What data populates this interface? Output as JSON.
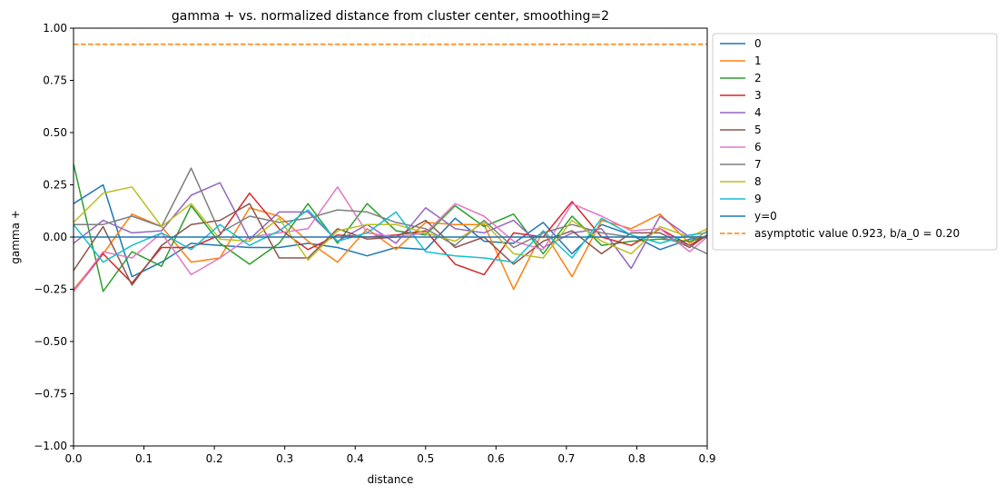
{
  "chart_data": {
    "type": "line",
    "title": "gamma + vs. normalized distance from cluster center, smoothing=2",
    "xlabel": "distance",
    "ylabel": "gamma +",
    "xlim": [
      0.0,
      0.9
    ],
    "ylim": [
      -1.0,
      1.0
    ],
    "xticks": [
      0.0,
      0.1,
      0.2,
      0.3,
      0.4,
      0.5,
      0.6,
      0.7,
      0.8,
      0.9
    ],
    "xtick_labels": [
      "0.0",
      "0.1",
      "0.2",
      "0.3",
      "0.4",
      "0.5",
      "0.6",
      "0.7",
      "0.8",
      "0.9"
    ],
    "yticks": [
      -1.0,
      -0.75,
      -0.5,
      -0.25,
      0.0,
      0.25,
      0.5,
      0.75,
      1.0
    ],
    "ytick_labels": [
      "−1.00",
      "−0.75",
      "−0.50",
      "−0.25",
      "0.00",
      "0.25",
      "0.50",
      "0.75",
      "1.00"
    ],
    "grid": false,
    "legend_position": "outside-right-top",
    "x": [
      0.0,
      0.042,
      0.083,
      0.125,
      0.167,
      0.208,
      0.25,
      0.292,
      0.333,
      0.375,
      0.417,
      0.458,
      0.5,
      0.542,
      0.583,
      0.625,
      0.667,
      0.708,
      0.75,
      0.792,
      0.833,
      0.875,
      0.9
    ],
    "series": [
      {
        "name": "0",
        "color": "#1f77b4",
        "dash": false,
        "values": [
          0.16,
          0.25,
          -0.19,
          -0.12,
          -0.03,
          -0.04,
          -0.05,
          -0.05,
          -0.03,
          -0.05,
          -0.09,
          -0.05,
          -0.06,
          0.09,
          -0.02,
          -0.03,
          0.07,
          -0.08,
          0.06,
          0.01,
          -0.06,
          -0.01,
          0.0
        ]
      },
      {
        "name": "1",
        "color": "#ff7f0e",
        "dash": false,
        "values": [
          -0.25,
          -0.08,
          0.11,
          0.05,
          -0.12,
          -0.1,
          0.14,
          0.1,
          -0.02,
          -0.12,
          0.04,
          -0.06,
          0.07,
          0.06,
          0.06,
          -0.25,
          0.03,
          -0.19,
          0.08,
          0.04,
          0.11,
          -0.03,
          0.03
        ]
      },
      {
        "name": "2",
        "color": "#2ca02c",
        "dash": false,
        "values": [
          0.35,
          -0.26,
          -0.07,
          -0.14,
          0.15,
          -0.03,
          -0.13,
          -0.03,
          0.16,
          -0.03,
          0.16,
          0.03,
          0.01,
          0.15,
          0.05,
          0.11,
          -0.08,
          0.1,
          -0.04,
          -0.02,
          -0.01,
          -0.02,
          0.0
        ]
      },
      {
        "name": "3",
        "color": "#d62728",
        "dash": false,
        "values": [
          -0.26,
          -0.08,
          -0.22,
          -0.05,
          -0.05,
          0.01,
          0.21,
          0.04,
          -0.06,
          0.01,
          0.0,
          0.01,
          0.03,
          -0.13,
          -0.18,
          0.02,
          0.0,
          0.17,
          0.0,
          -0.04,
          0.04,
          -0.04,
          0.01
        ]
      },
      {
        "name": "4",
        "color": "#9467bd",
        "dash": false,
        "values": [
          -0.03,
          0.08,
          0.02,
          0.03,
          0.2,
          0.26,
          -0.01,
          0.12,
          0.12,
          -0.02,
          0.06,
          -0.03,
          0.14,
          0.04,
          0.02,
          0.08,
          -0.05,
          0.02,
          0.04,
          -0.15,
          0.1,
          0.0,
          0.0
        ]
      },
      {
        "name": "5",
        "color": "#8c564b",
        "dash": false,
        "values": [
          -0.16,
          0.05,
          -0.23,
          -0.04,
          0.06,
          0.08,
          0.16,
          -0.1,
          -0.1,
          0.04,
          -0.01,
          0.0,
          0.08,
          -0.05,
          0.0,
          -0.13,
          -0.02,
          0.03,
          -0.08,
          0.02,
          0.02,
          -0.05,
          0.01
        ]
      },
      {
        "name": "6",
        "color": "#e377c2",
        "dash": false,
        "values": [
          -0.26,
          -0.07,
          -0.1,
          0.02,
          -0.18,
          -0.1,
          0.0,
          0.02,
          0.04,
          0.24,
          0.02,
          0.0,
          0.02,
          0.16,
          0.1,
          -0.02,
          -0.06,
          0.16,
          0.1,
          0.03,
          0.04,
          -0.07,
          0.0
        ]
      },
      {
        "name": "7",
        "color": "#7f7f7f",
        "dash": false,
        "values": [
          0.06,
          0.06,
          0.1,
          0.05,
          0.33,
          0.02,
          0.1,
          0.07,
          0.09,
          0.13,
          0.12,
          0.07,
          0.04,
          -0.04,
          0.08,
          -0.05,
          0.02,
          0.06,
          0.02,
          0.0,
          0.0,
          -0.04,
          -0.08
        ]
      },
      {
        "name": "8",
        "color": "#bcbd22",
        "dash": false,
        "values": [
          0.07,
          0.21,
          0.24,
          0.05,
          0.16,
          -0.01,
          -0.02,
          0.09,
          -0.11,
          0.03,
          0.06,
          0.06,
          0.02,
          -0.02,
          0.07,
          -0.08,
          -0.1,
          0.08,
          -0.02,
          -0.08,
          0.05,
          0.0,
          0.04
        ]
      },
      {
        "name": "9",
        "color": "#17becf",
        "dash": false,
        "values": [
          0.06,
          -0.12,
          -0.04,
          0.02,
          -0.06,
          0.06,
          -0.04,
          0.03,
          0.13,
          -0.02,
          0.02,
          0.12,
          -0.07,
          -0.09,
          -0.1,
          -0.12,
          0.03,
          -0.1,
          0.09,
          0.01,
          -0.03,
          0.01,
          0.02
        ]
      },
      {
        "name": "y=0",
        "color": "#1f77b4",
        "dash": false,
        "values": [
          0,
          0,
          0,
          0,
          0,
          0,
          0,
          0,
          0,
          0,
          0,
          0,
          0,
          0,
          0,
          0,
          0,
          0,
          0,
          0,
          0,
          0,
          0
        ]
      },
      {
        "name": "asymptotic value 0.923, b/a_0 = 0.20",
        "color": "#ff7f0e",
        "dash": true,
        "values": [
          0.923,
          0.923,
          0.923,
          0.923,
          0.923,
          0.923,
          0.923,
          0.923,
          0.923,
          0.923,
          0.923,
          0.923,
          0.923,
          0.923,
          0.923,
          0.923,
          0.923,
          0.923,
          0.923,
          0.923,
          0.923,
          0.923,
          0.923
        ]
      }
    ]
  }
}
